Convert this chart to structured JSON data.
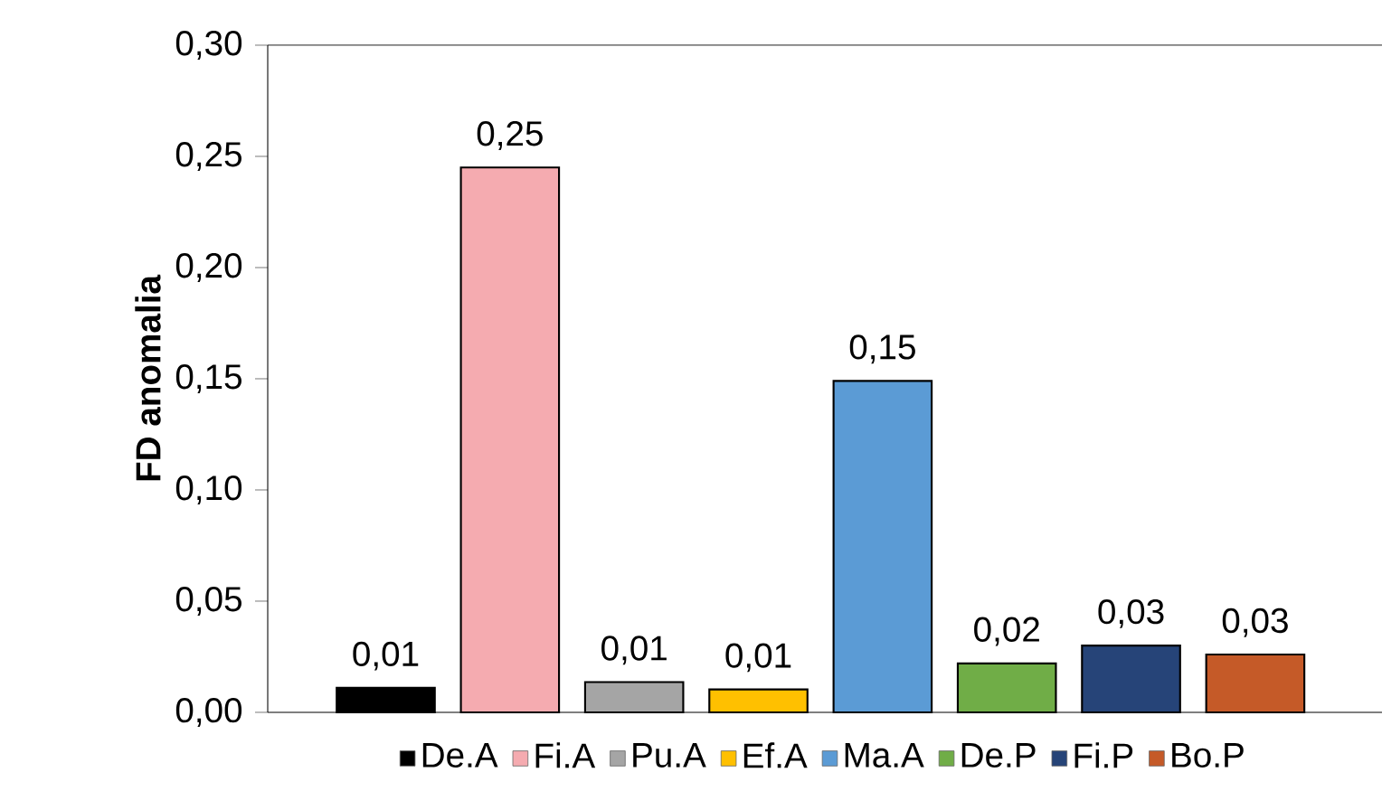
{
  "chart_data": {
    "type": "bar",
    "ylabel": "FD anomalia",
    "categories": [
      null,
      null,
      null,
      null,
      null,
      null,
      null,
      null
    ],
    "series": [
      {
        "name": "De.A",
        "color": "#000000",
        "values": [
          0.011,
          null,
          null,
          null,
          null,
          null,
          null,
          null
        ],
        "value_labels": [
          "0,01",
          null,
          null,
          null,
          null,
          null,
          null,
          null
        ]
      },
      {
        "name": "Fi.A",
        "color": "#f5abb0",
        "values": [
          null,
          0.245,
          null,
          null,
          null,
          null,
          null,
          null
        ],
        "value_labels": [
          null,
          "0,25",
          null,
          null,
          null,
          null,
          null,
          null
        ]
      },
      {
        "name": "Pu.A",
        "color": "#a5a5a5",
        "values": [
          null,
          null,
          0.0136,
          null,
          null,
          null,
          null,
          null
        ],
        "value_labels": [
          null,
          null,
          "0,01",
          null,
          null,
          null,
          null,
          null
        ]
      },
      {
        "name": "Ef.A",
        "color": "#ffc000",
        "values": [
          null,
          null,
          null,
          0.0103,
          null,
          null,
          null,
          null
        ],
        "value_labels": [
          null,
          null,
          null,
          "0,01",
          null,
          null,
          null,
          null
        ]
      },
      {
        "name": "Ma.A",
        "color": "#5b9bd5",
        "values": [
          null,
          null,
          null,
          null,
          0.149,
          null,
          null,
          null
        ],
        "value_labels": [
          null,
          null,
          null,
          null,
          "0,15",
          null,
          null,
          null
        ]
      },
      {
        "name": "De.P",
        "color": "#70ad47",
        "values": [
          null,
          null,
          null,
          null,
          null,
          0.022,
          null,
          null
        ],
        "value_labels": [
          null,
          null,
          null,
          null,
          null,
          "0,02",
          null,
          null
        ]
      },
      {
        "name": "Fi.P",
        "color": "#264478",
        "values": [
          null,
          null,
          null,
          null,
          null,
          null,
          0.03,
          null
        ],
        "value_labels": [
          null,
          null,
          null,
          null,
          null,
          null,
          "0,03",
          null
        ]
      },
      {
        "name": "Bo.P",
        "color": "#c55a28",
        "values": [
          null,
          null,
          null,
          null,
          null,
          null,
          null,
          0.026
        ],
        "value_labels": [
          null,
          null,
          null,
          null,
          null,
          null,
          null,
          "0,03"
        ]
      }
    ],
    "ylim": [
      0,
      0.3
    ],
    "yticks": [
      {
        "value": 0,
        "label": "0,00"
      },
      {
        "value": 0.05,
        "label": "0,05"
      },
      {
        "value": 0.1,
        "label": "0,10"
      },
      {
        "value": 0.15,
        "label": "0,15"
      },
      {
        "value": 0.2,
        "label": "0,20"
      },
      {
        "value": 0.25,
        "label": "0,25"
      },
      {
        "value": 0.3,
        "label": "0,30"
      }
    ],
    "legend": "bottom"
  }
}
